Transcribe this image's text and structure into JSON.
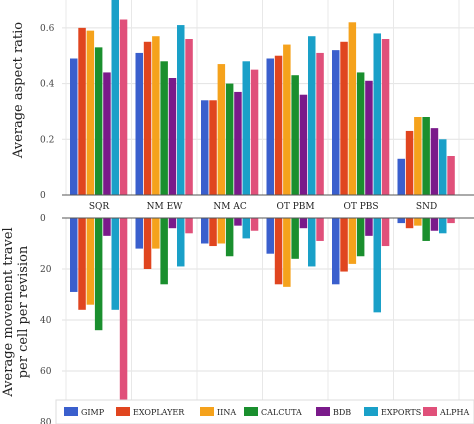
{
  "chart_data": [
    {
      "type": "bar",
      "ylabel": "Average aspect ratio",
      "ylim": [
        0,
        0.7
      ],
      "yticks": [
        "0",
        "0.2",
        "0.4",
        "0.6"
      ],
      "categories": [
        "SQR",
        "NM EW",
        "NM AC",
        "OT PBM",
        "OT PBS",
        "SND"
      ],
      "series": [
        {
          "name": "GIMP",
          "values": [
            0.49,
            0.51,
            0.34,
            0.49,
            0.52,
            0.13
          ]
        },
        {
          "name": "EXOPLAYER",
          "values": [
            0.6,
            0.55,
            0.34,
            0.5,
            0.55,
            0.23
          ]
        },
        {
          "name": "IINA",
          "values": [
            0.59,
            0.57,
            0.47,
            0.54,
            0.62,
            0.28
          ]
        },
        {
          "name": "CALCUTA",
          "values": [
            0.53,
            0.48,
            0.4,
            0.43,
            0.44,
            0.28
          ]
        },
        {
          "name": "BDB",
          "values": [
            0.44,
            0.42,
            0.37,
            0.36,
            0.41,
            0.24
          ]
        },
        {
          "name": "EXPORTS",
          "values": [
            0.7,
            0.61,
            0.48,
            0.57,
            0.58,
            0.2
          ]
        },
        {
          "name": "ALPHA",
          "values": [
            0.63,
            0.56,
            0.45,
            0.51,
            0.56,
            0.14
          ]
        }
      ],
      "grid": true
    },
    {
      "type": "bar",
      "ylabel_lines": [
        "Average movement travel",
        "per cell per revision"
      ],
      "ylim": [
        0,
        80
      ],
      "inverted_axis": true,
      "yticks": [
        "0",
        "20",
        "40",
        "60",
        "80"
      ],
      "categories": [
        "SQR",
        "NM EW",
        "NM AC",
        "OT PBM",
        "OT PBS",
        "SND"
      ],
      "series": [
        {
          "name": "GIMP",
          "values": [
            29,
            12,
            10,
            14,
            26,
            2
          ]
        },
        {
          "name": "EXOPLAYER",
          "values": [
            36,
            20,
            11,
            26,
            21,
            4
          ]
        },
        {
          "name": "IINA",
          "values": [
            34,
            12,
            10,
            27,
            18,
            3
          ]
        },
        {
          "name": "CALCUTA",
          "values": [
            44,
            26,
            15,
            16,
            15,
            9
          ]
        },
        {
          "name": "BDB",
          "values": [
            7,
            4,
            3,
            4,
            7,
            5
          ]
        },
        {
          "name": "EXPORTS",
          "values": [
            36,
            19,
            8,
            19,
            37,
            6
          ]
        },
        {
          "name": "ALPHA",
          "values": [
            72,
            6,
            5,
            9,
            11,
            2
          ]
        }
      ],
      "grid": true,
      "legend": "bottom"
    }
  ],
  "colors": [
    "#3a5fcd",
    "#e0451f",
    "#f5a21c",
    "#1a8f2e",
    "#7a1a8a",
    "#1aa0c8",
    "#e0507a"
  ]
}
